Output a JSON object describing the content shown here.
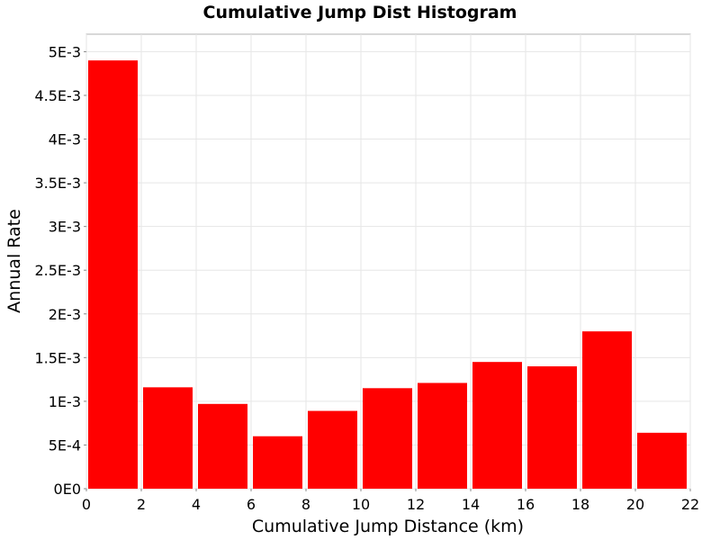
{
  "chart_data": {
    "type": "bar",
    "title": "Cumulative Jump Dist Histogram",
    "xlabel": "Cumulative Jump Distance (km)",
    "ylabel": "Annual Rate",
    "xlim": [
      0,
      22
    ],
    "ylim": [
      0,
      0.0052
    ],
    "x_ticks": [
      0,
      2,
      4,
      6,
      8,
      10,
      12,
      14,
      16,
      18,
      20,
      22
    ],
    "x_tick_labels": [
      "0",
      "2",
      "4",
      "6",
      "8",
      "10",
      "12",
      "14",
      "16",
      "18",
      "20",
      "22"
    ],
    "y_ticks": [
      0,
      0.0005,
      0.001,
      0.0015,
      0.002,
      0.0025,
      0.003,
      0.0035,
      0.004,
      0.0045,
      0.005
    ],
    "y_tick_labels": [
      "0E0",
      "5E-4",
      "1E-3",
      "1.5E-3",
      "2E-3",
      "2.5E-3",
      "3E-3",
      "3.5E-3",
      "4E-3",
      "4.5E-3",
      "5E-3"
    ],
    "bin_width": 2,
    "bars": [
      {
        "x": 0,
        "value": 0.0049
      },
      {
        "x": 2,
        "value": 0.00116
      },
      {
        "x": 4,
        "value": 0.00097
      },
      {
        "x": 6,
        "value": 0.0006
      },
      {
        "x": 8,
        "value": 0.00089
      },
      {
        "x": 10,
        "value": 0.00115
      },
      {
        "x": 12,
        "value": 0.00121
      },
      {
        "x": 14,
        "value": 0.00145
      },
      {
        "x": 16,
        "value": 0.0014
      },
      {
        "x": 18,
        "value": 0.0018
      },
      {
        "x": 20,
        "value": 0.00064
      }
    ],
    "bar_color": "#ff0000",
    "grid": true
  }
}
